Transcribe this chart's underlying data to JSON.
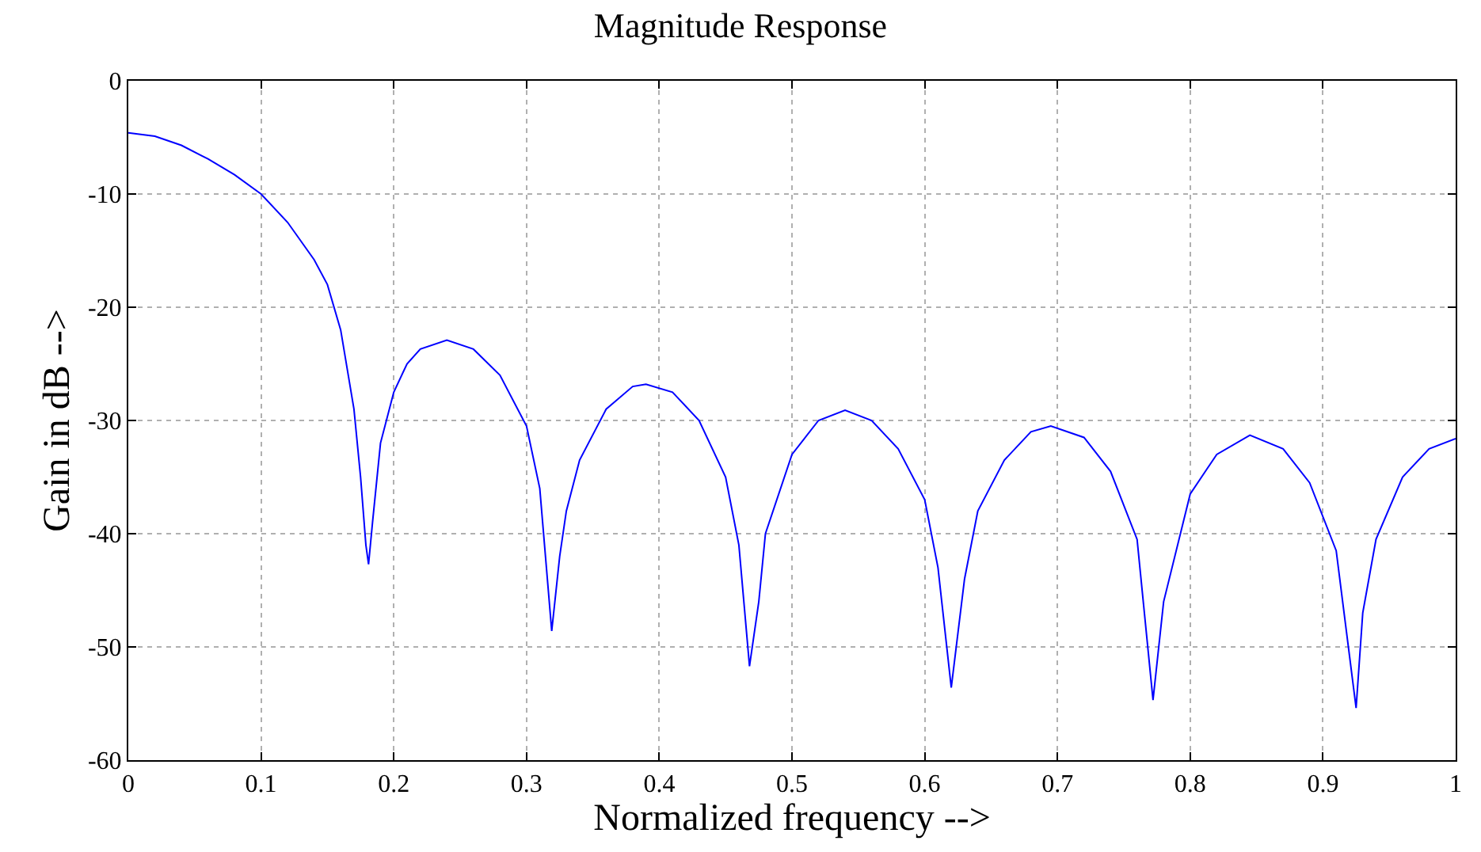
{
  "chart_data": {
    "type": "line",
    "title": "Magnitude Response",
    "xlabel": "Normalized frequency -->",
    "ylabel": "Gain in dB -->",
    "x": [
      0,
      0.02,
      0.04,
      0.06,
      0.08,
      0.1,
      0.12,
      0.14,
      0.15,
      0.16,
      0.17,
      0.175,
      0.179,
      0.181,
      0.184,
      0.19,
      0.2,
      0.21,
      0.22,
      0.24,
      0.26,
      0.28,
      0.3,
      0.31,
      0.319,
      0.325,
      0.33,
      0.34,
      0.36,
      0.38,
      0.39,
      0.41,
      0.43,
      0.45,
      0.46,
      0.468,
      0.475,
      0.48,
      0.5,
      0.52,
      0.54,
      0.56,
      0.58,
      0.6,
      0.61,
      0.62,
      0.63,
      0.64,
      0.66,
      0.68,
      0.695,
      0.72,
      0.74,
      0.76,
      0.772,
      0.78,
      0.8,
      0.82,
      0.845,
      0.87,
      0.89,
      0.91,
      0.925,
      0.93,
      0.94,
      0.96,
      0.98,
      1.0
    ],
    "series": [
      {
        "color": "#0000ff",
        "values": [
          -4.6,
          -4.9,
          -5.7,
          -6.9,
          -8.3,
          -10,
          -12.5,
          -15.8,
          -18,
          -22,
          -29,
          -35,
          -41,
          -42.7,
          -39,
          -32,
          -27.5,
          -25,
          -23.7,
          -22.9,
          -23.7,
          -26,
          -30.5,
          -36,
          -48.6,
          -42,
          -38,
          -33.5,
          -29,
          -27,
          -26.8,
          -27.5,
          -30,
          -35,
          -41,
          -51.7,
          -46,
          -40,
          -33,
          -30,
          -29.1,
          -30,
          -32.5,
          -37,
          -43,
          -53.6,
          -44,
          -38,
          -33.5,
          -31,
          -30.5,
          -31.5,
          -34.5,
          -40.5,
          -54.7,
          -46,
          -36.5,
          -33,
          -31.3,
          -32.5,
          -35.5,
          -41.5,
          -55.4,
          -47,
          -40.5,
          -35,
          -32.5,
          -31.6
        ]
      }
    ],
    "xlim": [
      0,
      1
    ],
    "ylim": [
      -60,
      0
    ],
    "xticks": [
      0,
      0.1,
      0.2,
      0.3,
      0.4,
      0.5,
      0.6,
      0.7,
      0.8,
      0.9,
      1
    ],
    "yticks": [
      -60,
      -50,
      -40,
      -30,
      -20,
      -10,
      0
    ],
    "grid": true,
    "legend": false,
    "marker": "none",
    "line_style": "solid"
  }
}
